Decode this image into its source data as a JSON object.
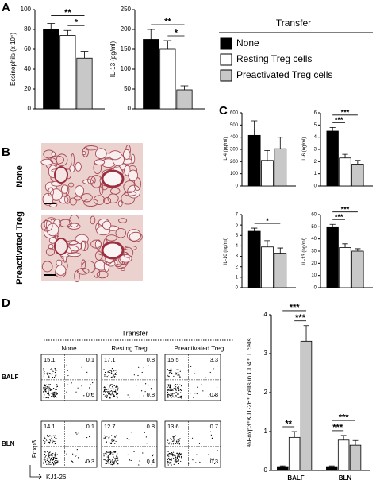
{
  "panels": [
    "A",
    "B",
    "C",
    "D"
  ],
  "legend": {
    "title": "Transfer",
    "items": [
      {
        "name": "None",
        "color": "#000000"
      },
      {
        "name": "Resting Treg cells",
        "color": "#ffffff"
      },
      {
        "name": "Preactivated Treg cells",
        "color": "#c8c8c8"
      }
    ]
  },
  "chart_data": [
    {
      "type": "bar",
      "ylabel": "Eosinophils (x 10⁴)",
      "values": [
        80,
        74,
        51
      ],
      "errors": [
        6,
        5,
        7
      ],
      "ylim": [
        0,
        100
      ],
      "yticks": [
        0,
        20,
        40,
        60,
        80,
        100
      ],
      "significance": [
        {
          "from": 0,
          "to": 2,
          "label": "**"
        },
        {
          "from": 1,
          "to": 2,
          "label": "*"
        }
      ]
    },
    {
      "type": "bar",
      "ylabel": "IL-13 (pg/ml)",
      "values": [
        175,
        150,
        48
      ],
      "errors": [
        25,
        22,
        10
      ],
      "ylim": [
        0,
        250
      ],
      "yticks": [
        0,
        50,
        100,
        150,
        200,
        250
      ],
      "significance": [
        {
          "from": 0,
          "to": 2,
          "label": "**"
        },
        {
          "from": 1,
          "to": 2,
          "label": "*"
        }
      ]
    },
    {
      "type": "bar",
      "ylabel": "IL-4 (pg/ml)",
      "values": [
        415,
        210,
        305
      ],
      "errors": [
        120,
        80,
        95
      ],
      "ylim": [
        0,
        600
      ],
      "yticks": [
        0,
        100,
        200,
        300,
        400,
        500,
        600
      ],
      "significance": []
    },
    {
      "type": "bar",
      "ylabel": "IL-6 (ng/ml)",
      "values": [
        4.5,
        2.3,
        1.8
      ],
      "errors": [
        0.3,
        0.3,
        0.3
      ],
      "ylim": [
        0,
        6
      ],
      "yticks": [
        0,
        1,
        2,
        3,
        4,
        5,
        6
      ],
      "significance": [
        {
          "from": 0,
          "to": 2,
          "label": "***"
        },
        {
          "from": 0,
          "to": 1,
          "label": "***"
        }
      ]
    },
    {
      "type": "bar",
      "ylabel": "IL-10 (ng/ml)",
      "values": [
        5.4,
        3.9,
        3.3
      ],
      "errors": [
        0.3,
        0.6,
        0.5
      ],
      "ylim": [
        0,
        7
      ],
      "yticks": [
        0,
        1,
        2,
        3,
        4,
        5,
        6,
        7
      ],
      "significance": [
        {
          "from": 0,
          "to": 2,
          "label": "*"
        }
      ]
    },
    {
      "type": "bar",
      "ylabel": "IL-13 (ng/ml)",
      "values": [
        50,
        33,
        30
      ],
      "errors": [
        2,
        3,
        2
      ],
      "ylim": [
        0,
        60
      ],
      "yticks": [
        0,
        10,
        20,
        30,
        40,
        50,
        60
      ],
      "significance": [
        {
          "from": 0,
          "to": 2,
          "label": "***"
        },
        {
          "from": 0,
          "to": 1,
          "label": "***"
        }
      ]
    },
    {
      "type": "bar",
      "ylabel": "%Foxp3⁺KJ1-26⁺ cells in CD4⁺ T cells",
      "categories": [
        "BALF",
        "BLN"
      ],
      "series": [
        {
          "values": [
            0.1,
            0.1
          ],
          "errors": [
            0.02,
            0.02
          ]
        },
        {
          "values": [
            0.85,
            0.78
          ],
          "errors": [
            0.15,
            0.12
          ]
        },
        {
          "values": [
            3.32,
            0.65
          ],
          "errors": [
            0.4,
            0.12
          ]
        }
      ],
      "ylim": [
        0,
        4
      ],
      "yticks": [
        0,
        1,
        2,
        3,
        4
      ],
      "significance": [
        {
          "category": 0,
          "from": 0,
          "to": 2,
          "label": "***"
        },
        {
          "category": 0,
          "from": 1,
          "to": 2,
          "label": "***"
        },
        {
          "category": 0,
          "from": 0,
          "to": 1,
          "label": "**"
        },
        {
          "category": 1,
          "from": 0,
          "to": 2,
          "label": "***"
        },
        {
          "category": 1,
          "from": 0,
          "to": 1,
          "label": "***"
        }
      ]
    }
  ],
  "histology": {
    "rows": [
      "None",
      "Preactivated Treg"
    ]
  },
  "flow": {
    "title": "Transfer",
    "columns": [
      "None",
      "Resting Treg",
      "Preactivated Treg"
    ],
    "rows": [
      {
        "label": "BALF",
        "cells": [
          {
            "upper_left": 15.1,
            "upper_right": 0.1,
            "lower_right": 0.6
          },
          {
            "upper_left": 17.1,
            "upper_right": 0.8,
            "lower_right": 0.8
          },
          {
            "upper_left": 15.5,
            "upper_right": 3.3,
            "lower_right": 0.8
          }
        ]
      },
      {
        "label": "BLN",
        "cells": [
          {
            "upper_left": 14.1,
            "upper_right": 0.1,
            "lower_right": 0.3
          },
          {
            "upper_left": 12.7,
            "upper_right": 0.8,
            "lower_right": 0.4
          },
          {
            "upper_left": 13.6,
            "upper_right": 0.7,
            "lower_right": 0.3
          }
        ]
      }
    ],
    "y_axis": "Foxp3",
    "x_axis": "KJ1-26"
  }
}
